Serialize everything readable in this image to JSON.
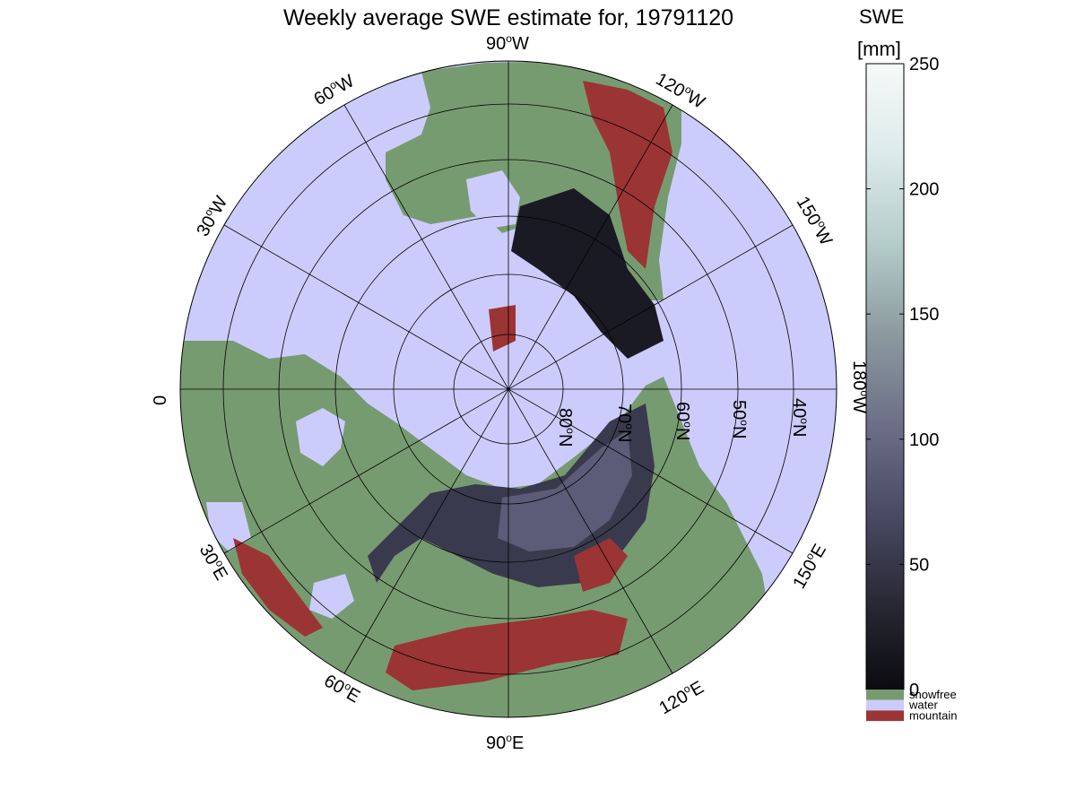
{
  "title": "Weekly average SWE estimate for, 19791120",
  "colorbar": {
    "label_line1": "SWE",
    "label_line2": "[mm]",
    "ticks": [
      "0",
      "50",
      "100",
      "150",
      "200",
      "250"
    ],
    "min": 0,
    "max": 250,
    "colors": [
      "#0b0b10",
      "#2a2a36",
      "#4b4b66",
      "#6d7188",
      "#8d9ba0",
      "#b4cdca",
      "#dcebea",
      "#f6f9f8"
    ]
  },
  "legend": [
    {
      "label": "snowfree",
      "color": "#779b70"
    },
    {
      "label": "water",
      "color": "#ccccfc"
    },
    {
      "label": "mountain",
      "color": "#9b3434"
    }
  ],
  "meridian_labels": {
    "m90w": "90",
    "m120w": "120",
    "m60w": "60",
    "m30w": "30",
    "m150w": "150",
    "m0": "0",
    "m180w": "180",
    "m30e": "30",
    "m150e": "150",
    "m60e": "60",
    "m120e": "120",
    "m90e": "90",
    "deg_sup": "o",
    "w": "W",
    "e": "E"
  },
  "parallel_labels": {
    "p80": "80",
    "p70": "70",
    "p60": "60",
    "p50": "50",
    "p40": "40",
    "n": "N"
  }
}
